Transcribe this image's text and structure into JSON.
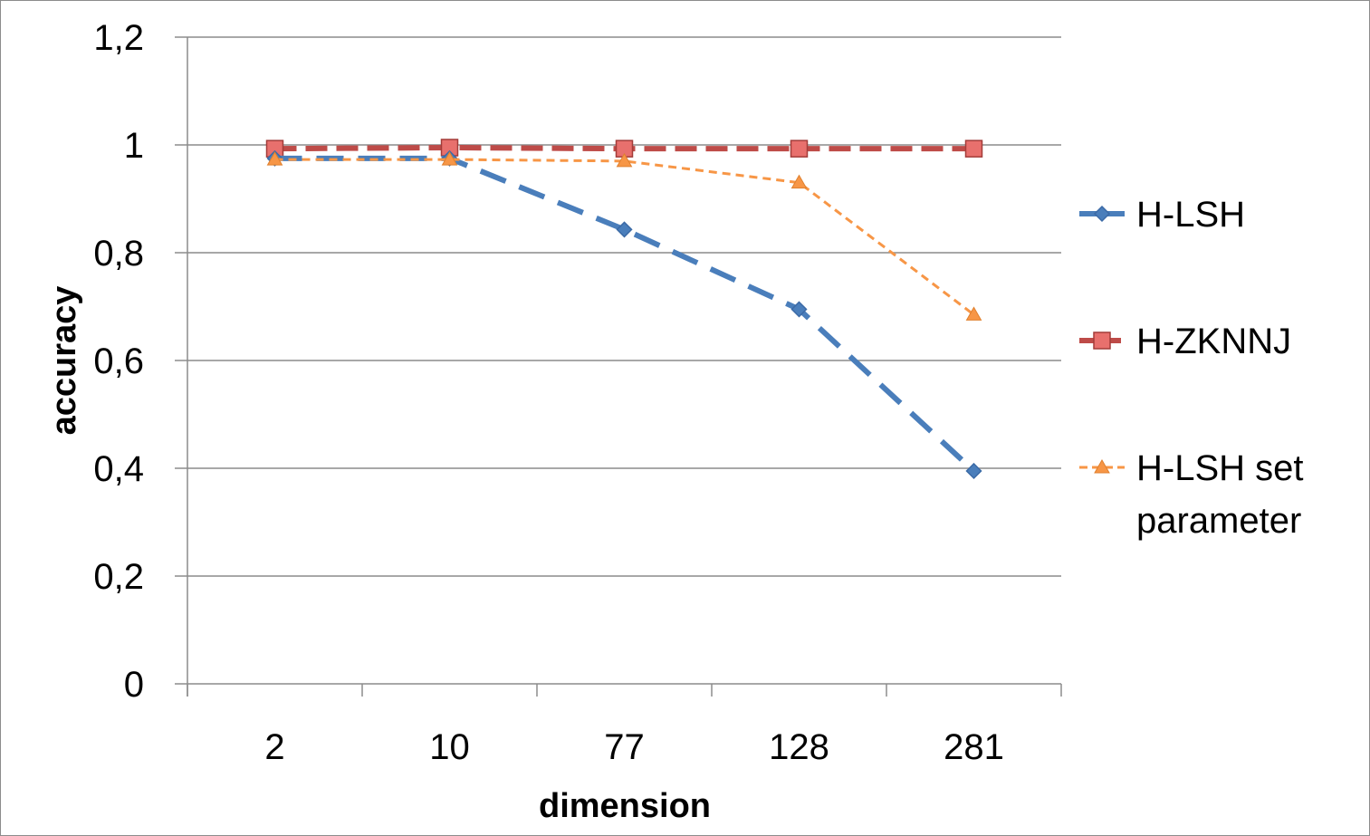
{
  "chart_data": {
    "type": "line",
    "xlabel": "dimension",
    "ylabel": "accuracy",
    "categories": [
      "2",
      "10",
      "77",
      "128",
      "281"
    ],
    "ylim": [
      0,
      1.2
    ],
    "yticks": [
      0,
      0.2,
      0.4,
      0.6,
      0.8,
      1,
      1.2
    ],
    "ytick_labels": [
      "0",
      "0,2",
      "0,4",
      "0,6",
      "0,8",
      "1",
      "1,2"
    ],
    "grid": true,
    "legend_position": "right",
    "series": [
      {
        "name": "H-LSH",
        "values": [
          0.975,
          0.975,
          0.843,
          0.695,
          0.395
        ],
        "color": "#4a7ebb",
        "marker": "diamond",
        "line_style": "long-dash",
        "legend_lines": [
          "H-LSH"
        ]
      },
      {
        "name": "H-ZKNNJ",
        "values": [
          0.993,
          0.995,
          0.993,
          0.993,
          0.993
        ],
        "color": "#be4b48",
        "marker": "square",
        "line_style": "dash",
        "legend_lines": [
          "H-ZKNNJ"
        ]
      },
      {
        "name": "H-LSH set parameter",
        "values": [
          0.973,
          0.973,
          0.97,
          0.93,
          0.685
        ],
        "color": "#f79646",
        "marker": "triangle",
        "line_style": "short-dash",
        "legend_lines": [
          "H-LSH set",
          "parameter"
        ]
      }
    ]
  }
}
